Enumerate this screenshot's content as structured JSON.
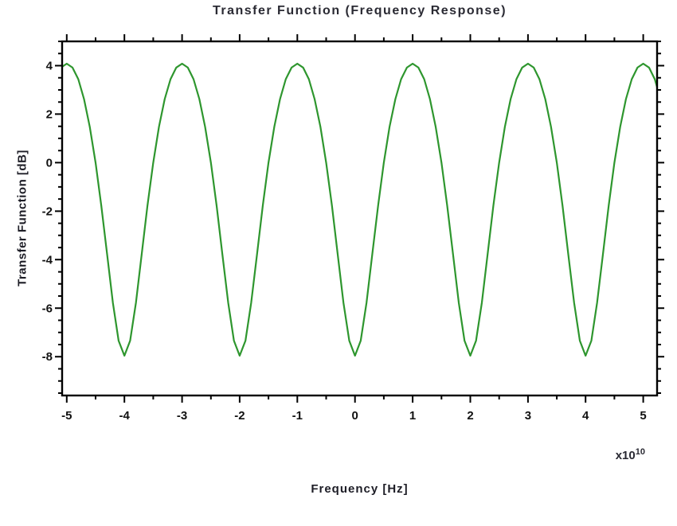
{
  "chart_data": {
    "type": "line",
    "title": "Transfer Function (Frequency Response)",
    "xlabel": "Frequency [Hz]",
    "ylabel": "Transfer Function [dB]",
    "x_scale_prefix": "x10",
    "x_scale_exponent": "10",
    "xlim": [
      -5.08,
      5.24
    ],
    "ylim": [
      -9.6,
      5.0
    ],
    "x_major_ticks": [
      -5,
      -4,
      -3,
      -2,
      -1,
      0,
      1,
      2,
      3,
      4,
      5
    ],
    "x_minor_step": 0.5,
    "y_major_ticks": [
      4,
      2,
      0,
      -2,
      -4,
      -6,
      -8
    ],
    "y_minor_step": 0.5,
    "grid": false,
    "y_max": 4.08,
    "y_min": -7.96,
    "line_color": "#2E962E",
    "axis_color": "#000000",
    "tick_label_color": "#111111",
    "series": [
      {
        "name": "transfer_function_db",
        "x_start": -5.2,
        "x_step": 0.1,
        "y": [
          3.44,
          3.92,
          4.08,
          3.92,
          3.44,
          2.62,
          1.48,
          0,
          -1.78,
          -3.78,
          -5.77,
          -7.34,
          -7.96,
          -7.34,
          -5.77,
          -3.78,
          -1.78,
          0,
          1.48,
          2.62,
          3.44,
          3.92,
          4.08,
          3.92,
          3.44,
          2.62,
          1.48,
          0,
          -1.78,
          -3.78,
          -5.77,
          -7.34,
          -7.96,
          -7.34,
          -5.77,
          -3.78,
          -1.78,
          0,
          1.48,
          2.62,
          3.44,
          3.92,
          4.08,
          3.92,
          3.44,
          2.62,
          1.48,
          0,
          -1.78,
          -3.78,
          -5.77,
          -7.34,
          -7.96,
          -7.34,
          -5.77,
          -3.78,
          -1.78,
          0,
          1.48,
          2.62,
          3.44,
          3.92,
          4.08,
          3.92,
          3.44,
          2.62,
          1.48,
          0,
          -1.78,
          -3.78,
          -5.77,
          -7.34,
          -7.96,
          -7.34,
          -5.77,
          -3.78,
          -1.78,
          0,
          1.48,
          2.62,
          3.44,
          3.92,
          4.08,
          3.92,
          3.44,
          2.62,
          1.48,
          0,
          -1.78,
          -3.78,
          -5.77,
          -7.34,
          -7.96,
          -7.34,
          -5.77,
          -3.78,
          -1.78,
          0,
          1.48,
          2.62,
          3.44,
          3.92,
          4.08,
          3.92,
          3.44,
          2.62
        ]
      }
    ]
  }
}
